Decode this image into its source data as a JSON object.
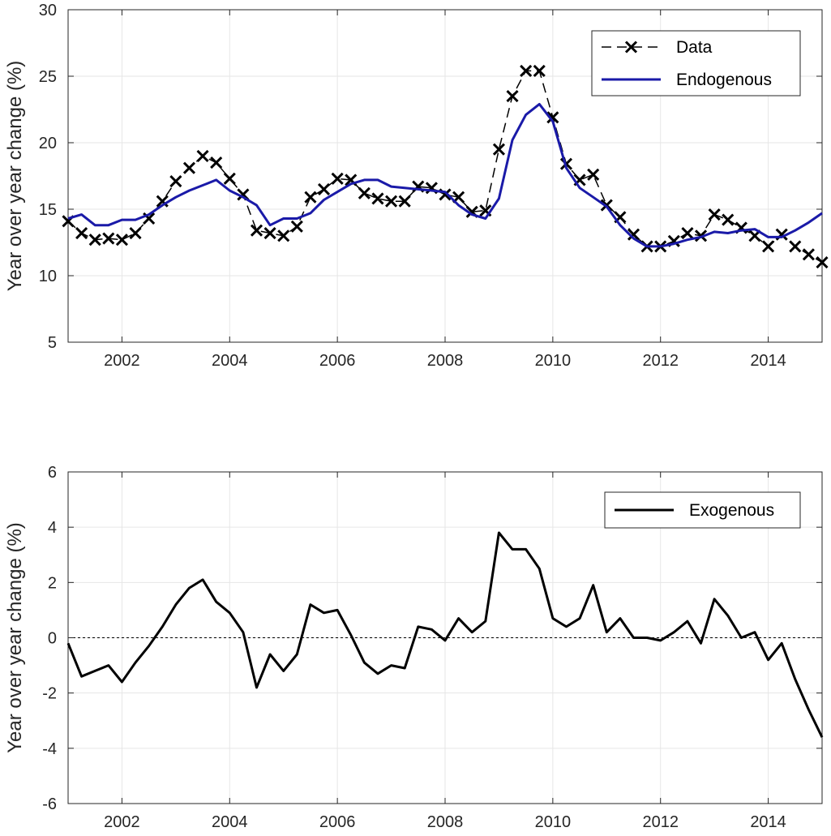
{
  "chart_data": [
    {
      "type": "line",
      "ylabel": "Year over year change (%)",
      "xlim": [
        2001.0,
        2015.0
      ],
      "ylim": [
        5,
        30
      ],
      "xticks": [
        2002,
        2004,
        2006,
        2008,
        2010,
        2012,
        2014
      ],
      "yticks": [
        5,
        10,
        15,
        20,
        25,
        30
      ],
      "grid": true,
      "legend_position": "top-right",
      "legend": [
        "Data",
        "Endogenous"
      ],
      "series": [
        {
          "name": "Data",
          "color": "#000000",
          "style": "dashed",
          "marker": "x",
          "x": [
            2001.0,
            2001.25,
            2001.5,
            2001.75,
            2002.0,
            2002.25,
            2002.5,
            2002.75,
            2003.0,
            2003.25,
            2003.5,
            2003.75,
            2004.0,
            2004.25,
            2004.5,
            2004.75,
            2005.0,
            2005.25,
            2005.5,
            2005.75,
            2006.0,
            2006.25,
            2006.5,
            2006.75,
            2007.0,
            2007.25,
            2007.5,
            2007.75,
            2008.0,
            2008.25,
            2008.5,
            2008.75,
            2009.0,
            2009.25,
            2009.5,
            2009.75,
            2010.0,
            2010.25,
            2010.5,
            2010.75,
            2011.0,
            2011.25,
            2011.5,
            2011.75,
            2012.0,
            2012.25,
            2012.5,
            2012.75,
            2013.0,
            2013.25,
            2013.5,
            2013.75,
            2014.0,
            2014.25,
            2014.5,
            2014.75,
            2015.0
          ],
          "y": [
            14.1,
            13.2,
            12.7,
            12.8,
            12.7,
            13.2,
            14.3,
            15.6,
            17.1,
            18.1,
            19.0,
            18.5,
            17.3,
            16.1,
            13.4,
            13.2,
            13.0,
            13.7,
            15.9,
            16.5,
            17.3,
            17.2,
            16.2,
            15.8,
            15.6,
            15.6,
            16.7,
            16.6,
            16.1,
            15.9,
            14.8,
            14.9,
            19.5,
            23.5,
            25.4,
            25.4,
            21.9,
            18.4,
            17.2,
            17.6,
            15.3,
            14.4,
            13.1,
            12.2,
            12.2,
            12.6,
            13.2,
            13.0,
            14.6,
            14.2,
            13.6,
            13.0,
            12.2,
            13.1,
            12.2,
            11.6,
            11.0
          ]
        },
        {
          "name": "Endogenous",
          "color": "#1a1aa8",
          "style": "solid",
          "x": [
            2001.0,
            2001.25,
            2001.5,
            2001.75,
            2002.0,
            2002.25,
            2002.5,
            2002.75,
            2003.0,
            2003.25,
            2003.5,
            2003.75,
            2004.0,
            2004.25,
            2004.5,
            2004.75,
            2005.0,
            2005.25,
            2005.5,
            2005.75,
            2006.0,
            2006.25,
            2006.5,
            2006.75,
            2007.0,
            2007.25,
            2007.5,
            2007.75,
            2008.0,
            2008.25,
            2008.5,
            2008.75,
            2009.0,
            2009.25,
            2009.5,
            2009.75,
            2010.0,
            2010.25,
            2010.5,
            2010.75,
            2011.0,
            2011.25,
            2011.5,
            2011.75,
            2012.0,
            2012.25,
            2012.5,
            2012.75,
            2013.0,
            2013.25,
            2013.5,
            2013.75,
            2014.0,
            2014.25,
            2014.5,
            2014.75,
            2015.0
          ],
          "y": [
            14.3,
            14.6,
            13.8,
            13.8,
            14.2,
            14.2,
            14.6,
            15.3,
            15.9,
            16.4,
            16.8,
            17.2,
            16.4,
            15.9,
            15.3,
            13.8,
            14.3,
            14.3,
            14.7,
            15.7,
            16.3,
            16.9,
            17.2,
            17.2,
            16.7,
            16.6,
            16.5,
            16.4,
            16.3,
            15.3,
            14.6,
            14.3,
            15.8,
            20.2,
            22.1,
            22.9,
            21.6,
            18.1,
            16.6,
            15.9,
            15.2,
            13.8,
            12.8,
            12.2,
            12.2,
            12.4,
            12.7,
            12.9,
            13.3,
            13.2,
            13.4,
            13.5,
            12.9,
            12.9,
            13.4,
            14.0,
            14.7
          ]
        }
      ]
    },
    {
      "type": "line",
      "ylabel": "Year over year change (%)",
      "xlim": [
        2001.0,
        2015.0
      ],
      "ylim": [
        -6,
        6
      ],
      "xticks": [
        2002,
        2004,
        2006,
        2008,
        2010,
        2012,
        2014
      ],
      "yticks": [
        -6,
        -4,
        -2,
        0,
        2,
        4,
        6
      ],
      "grid": true,
      "zero_line": true,
      "legend_position": "top-right",
      "legend": [
        "Exogenous"
      ],
      "series": [
        {
          "name": "Exogenous",
          "color": "#000000",
          "style": "solid",
          "x": [
            2001.0,
            2001.25,
            2001.5,
            2001.75,
            2002.0,
            2002.25,
            2002.5,
            2002.75,
            2003.0,
            2003.25,
            2003.5,
            2003.75,
            2004.0,
            2004.25,
            2004.5,
            2004.75,
            2005.0,
            2005.25,
            2005.5,
            2005.75,
            2006.0,
            2006.25,
            2006.5,
            2006.75,
            2007.0,
            2007.25,
            2007.5,
            2007.75,
            2008.0,
            2008.25,
            2008.5,
            2008.75,
            2009.0,
            2009.25,
            2009.5,
            2009.75,
            2010.0,
            2010.25,
            2010.5,
            2010.75,
            2011.0,
            2011.25,
            2011.5,
            2011.75,
            2012.0,
            2012.25,
            2012.5,
            2012.75,
            2013.0,
            2013.25,
            2013.5,
            2013.75,
            2014.0,
            2014.25,
            2014.5,
            2014.75,
            2015.0
          ],
          "y": [
            -0.2,
            -1.4,
            -1.2,
            -1.0,
            -1.6,
            -0.9,
            -0.3,
            0.4,
            1.2,
            1.8,
            2.1,
            1.3,
            0.9,
            0.2,
            -1.8,
            -0.6,
            -1.2,
            -0.6,
            1.2,
            0.9,
            1.0,
            0.1,
            -0.9,
            -1.3,
            -1.0,
            -1.1,
            0.4,
            0.3,
            -0.1,
            0.7,
            0.2,
            0.6,
            3.8,
            3.2,
            3.2,
            2.5,
            0.7,
            0.4,
            0.7,
            1.9,
            0.2,
            0.7,
            0.0,
            0.0,
            -0.1,
            0.2,
            0.6,
            -0.2,
            1.4,
            0.8,
            0.0,
            0.2,
            -0.8,
            -0.2,
            -1.5,
            -2.6,
            -3.6
          ]
        }
      ]
    }
  ]
}
